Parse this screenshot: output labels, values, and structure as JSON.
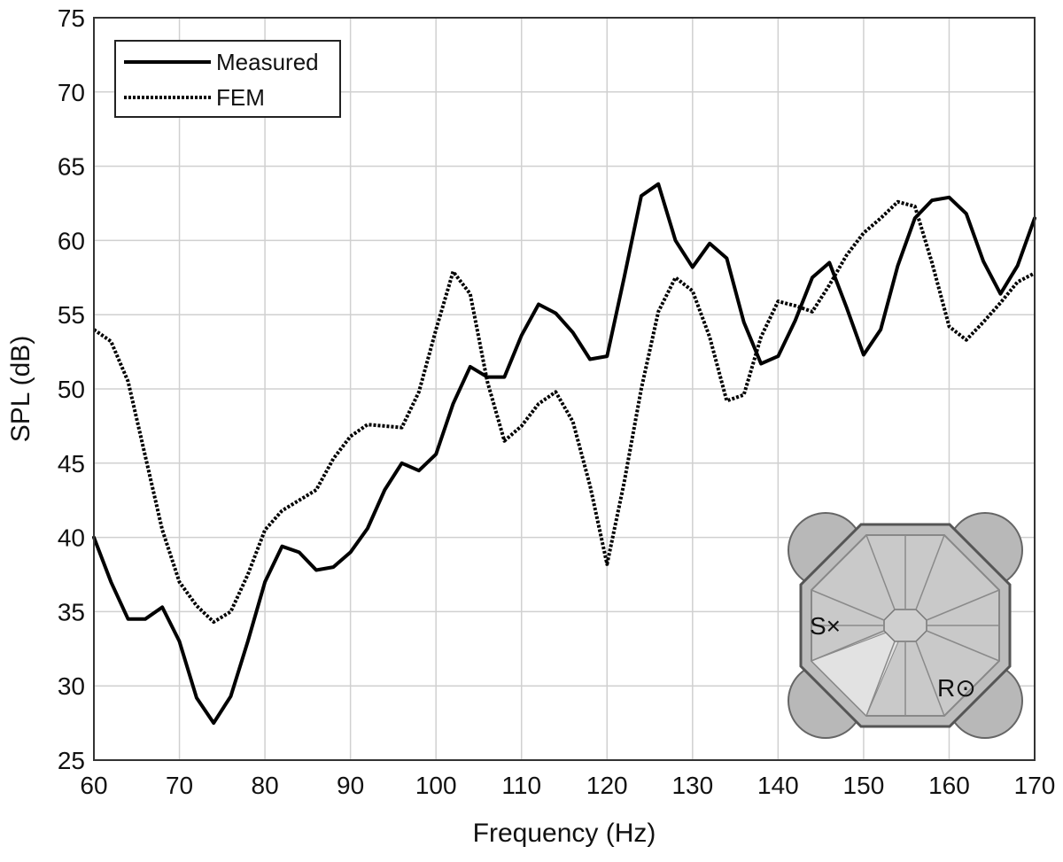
{
  "chart_data": {
    "type": "line",
    "title": "",
    "xlabel": "Frequency (Hz)",
    "ylabel": "SPL (dB)",
    "xlim": [
      60,
      170
    ],
    "ylim": [
      25,
      75
    ],
    "x_ticks": [
      "60",
      "70",
      "80",
      "90",
      "100",
      "110",
      "120",
      "130",
      "140",
      "150",
      "160",
      "170"
    ],
    "y_ticks": [
      "25",
      "30",
      "35",
      "40",
      "45",
      "50",
      "55",
      "60",
      "65",
      "70",
      "75"
    ],
    "grid": true,
    "legend_position": "top-left",
    "series": [
      {
        "name": "Measured",
        "style": "solid",
        "color": "#000000",
        "x": [
          60,
          62,
          64,
          66,
          68,
          70,
          72,
          74,
          76,
          78,
          80,
          82,
          84,
          86,
          88,
          90,
          92,
          94,
          96,
          98,
          100,
          102,
          104,
          106,
          108,
          110,
          112,
          114,
          116,
          118,
          120,
          122,
          124,
          126,
          128,
          130,
          132,
          134,
          136,
          138,
          140,
          142,
          144,
          146,
          148,
          150,
          152,
          154,
          156,
          158,
          160,
          162,
          164,
          166,
          168,
          170
        ],
        "y": [
          40,
          37,
          34.5,
          34.5,
          35.3,
          33,
          29.2,
          27.5,
          29.3,
          33,
          37,
          39.4,
          39,
          37.8,
          38,
          39,
          40.6,
          43.2,
          45,
          44.5,
          45.6,
          49,
          51.5,
          50.8,
          50.8,
          53.6,
          55.7,
          55.1,
          53.8,
          52,
          52.2,
          57.5,
          63,
          63.8,
          60,
          58.2,
          59.8,
          58.8,
          54.5,
          51.7,
          52.2,
          54.6,
          57.5,
          58.5,
          55.5,
          52.3,
          54,
          58.3,
          61.5,
          62.7,
          62.9,
          61.8,
          58.6,
          56.4,
          58.3,
          61.5
        ]
      },
      {
        "name": "FEM",
        "style": "dotted",
        "color": "#000000",
        "x": [
          60,
          62,
          64,
          66,
          68,
          70,
          72,
          74,
          76,
          78,
          80,
          82,
          84,
          86,
          88,
          90,
          92,
          94,
          96,
          98,
          100,
          102,
          104,
          106,
          108,
          110,
          112,
          114,
          116,
          118,
          120,
          122,
          124,
          126,
          128,
          130,
          132,
          134,
          136,
          138,
          140,
          142,
          144,
          146,
          148,
          150,
          152,
          154,
          156,
          158,
          160,
          162,
          164,
          166,
          168,
          170
        ],
        "y": [
          54,
          53.2,
          50.5,
          45.5,
          40.5,
          37,
          35.4,
          34.3,
          35,
          37.5,
          40.5,
          41.8,
          42.5,
          43.2,
          45.3,
          46.8,
          47.6,
          47.5,
          47.4,
          49.8,
          54,
          57.9,
          56.4,
          50.5,
          46.5,
          47.5,
          49,
          49.8,
          47.8,
          43.5,
          38.2,
          43.7,
          50,
          55.2,
          57.5,
          56.6,
          53.5,
          49.2,
          49.6,
          53.5,
          55.9,
          55.6,
          55.2,
          57,
          59,
          60.5,
          61.5,
          62.6,
          62.3,
          58.5,
          54.2,
          53.3,
          54.5,
          55.8,
          57.2,
          57.8
        ]
      }
    ],
    "inset_labels": {
      "source": "S×",
      "receiver": "R⊙"
    }
  }
}
